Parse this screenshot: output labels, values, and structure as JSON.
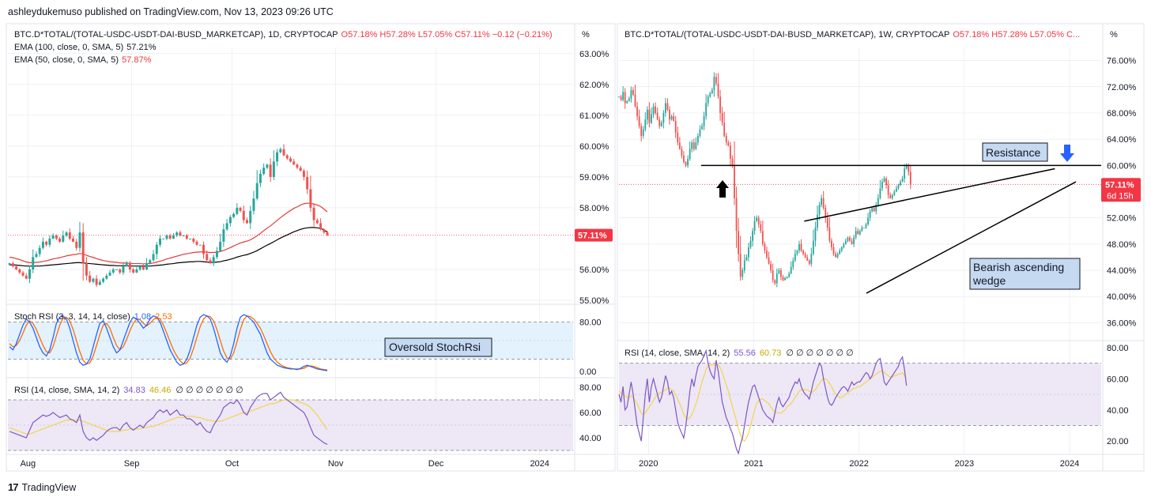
{
  "header": {
    "text": "ashleydukemuso published on TradingView.com, Nov 13, 2023 09:26 UTC"
  },
  "footer": {
    "logo_glyph": "17",
    "brand": "TradingView"
  },
  "colors": {
    "up": "#26a69a",
    "down": "#ef5350",
    "ema100": "#000000",
    "ema50": "#e53935",
    "stoch_k": "#2962ff",
    "stoch_d": "#ff6d00",
    "rsi": "#7e57c2",
    "rsi_ma": "#f5d44a",
    "band_stoch": "#e3f2fd",
    "band_rsi": "#ede7f6",
    "price_tag": "#f23645",
    "grid": "#e0e3eb"
  },
  "left_panel": {
    "legend": {
      "symbol": "BTC.D*TOTAL/(TOTAL-USDC-USDT-DAI-BUSD_MARKETCAP), 1D, CRYPTOCAP",
      "ohlc": "O57.18% H57.28% L57.05% C57.11% −0.12 (−0.21%)",
      "ema100_label": "EMA (100, close, 0, SMA, 5)",
      "ema100_value": "57.21%",
      "ema50_label": "EMA (50, close, 0, SMA, 5)",
      "ema50_value": "57.87%"
    },
    "unit": "%",
    "price_tag": "57.11%",
    "stoch_legend": {
      "label": "Stoch RSI (3, 3, 14, 14, close)",
      "k": "1.08",
      "d": "2.53"
    },
    "rsi_legend": {
      "label": "RSI (14, close, SMA, 14, 2)",
      "rsi": "34.83",
      "ma": "46.46",
      "extra": "∅ ∅ ∅ ∅ ∅ ∅ ∅"
    },
    "annotation": "Oversold StochRsi"
  },
  "right_panel": {
    "legend": {
      "symbol": "BTC.D*TOTAL/(TOTAL-USDC-USDT-DAI-BUSD_MARKETCAP), 1W, CRYPTOCAP",
      "ohlc": "O57.18% H57.28% L57.05% C..."
    },
    "unit": "%",
    "price_tag": "57.11%",
    "price_tag_time": "6d 15h",
    "rsi_legend": {
      "label": "RSI (14, close, SMA, 14, 2)",
      "rsi": "55.56",
      "ma": "60.73",
      "extra": "∅ ∅ ∅ ∅ ∅ ∅ ∅"
    },
    "annotation_resistance": "Resistance",
    "annotation_wedge_1": "Bearish ascending",
    "annotation_wedge_2": "wedge"
  },
  "chart_data": [
    {
      "type": "candlestick",
      "name": "BTC dominance 1D",
      "ylim": [
        55.0,
        63.2
      ],
      "y_ticks": [
        "63.00%",
        "62.00%",
        "61.00%",
        "60.00%",
        "59.00%",
        "58.00%",
        "56.00%",
        "55.00%"
      ],
      "y_tick_values": [
        63,
        62,
        61,
        60,
        59,
        58,
        56,
        55
      ],
      "x_ticks": [
        "Aug",
        "Sep",
        "Oct",
        "Nov",
        "Dec",
        "2024"
      ],
      "x_tick_days": [
        0,
        31,
        61,
        92,
        122,
        153
      ],
      "x_first_day_offset": -6,
      "x_span_days": 169,
      "last_close": 57.11,
      "closes": [
        56.2,
        56.1,
        56.0,
        55.9,
        55.8,
        55.7,
        56.0,
        56.4,
        56.5,
        56.7,
        56.9,
        56.8,
        57.0,
        57.1,
        57.0,
        56.9,
        57.1,
        57.2,
        57.0,
        56.9,
        56.7,
        57.2,
        56.2,
        55.8,
        55.6,
        55.7,
        55.5,
        55.6,
        55.7,
        55.8,
        55.9,
        56.0,
        56.0,
        55.9,
        56.1,
        56.2,
        56.0,
        55.9,
        56.0,
        56.1,
        56.0,
        56.2,
        56.3,
        56.5,
        56.8,
        57.0,
        57.0,
        57.1,
        57.0,
        57.1,
        57.2,
        57.1,
        57.1,
        57.0,
        57.0,
        56.9,
        56.8,
        56.8,
        56.5,
        56.3,
        56.2,
        56.4,
        56.6,
        56.9,
        57.3,
        57.5,
        57.7,
        57.8,
        58.0,
        57.9,
        57.6,
        57.5,
        57.9,
        58.3,
        58.8,
        59.1,
        59.3,
        59.4,
        59.0,
        59.5,
        59.8,
        59.9,
        59.7,
        59.6,
        59.5,
        59.4,
        59.3,
        59.2,
        59.0,
        58.6,
        58.0,
        57.6,
        57.5,
        57.3,
        57.2,
        57.11
      ],
      "ema100": [
        56.15,
        56.15,
        56.14,
        56.13,
        56.12,
        56.11,
        56.11,
        56.11,
        56.11,
        56.11,
        56.12,
        56.13,
        56.14,
        56.15,
        56.16,
        56.17,
        56.18,
        56.19,
        56.2,
        56.21,
        56.22,
        56.22,
        56.21,
        56.2,
        56.19,
        56.18,
        56.17,
        56.16,
        56.15,
        56.14,
        56.13,
        56.13,
        56.12,
        56.12,
        56.12,
        56.12,
        56.11,
        56.11,
        56.11,
        56.11,
        56.11,
        56.11,
        56.11,
        56.12,
        56.13,
        56.14,
        56.15,
        56.17,
        56.18,
        56.19,
        56.21,
        56.22,
        56.23,
        56.24,
        56.25,
        56.25,
        56.26,
        56.26,
        56.25,
        56.24,
        56.23,
        56.23,
        56.24,
        56.25,
        56.28,
        56.3,
        56.33,
        56.36,
        56.4,
        56.43,
        56.46,
        56.48,
        56.52,
        56.56,
        56.61,
        56.67,
        56.73,
        56.79,
        56.84,
        56.9,
        56.96,
        57.02,
        57.07,
        57.12,
        57.17,
        57.22,
        57.26,
        57.3,
        57.33,
        57.35,
        57.36,
        57.36,
        57.35,
        57.33,
        57.28,
        57.21
      ],
      "ema50": [
        56.4,
        56.38,
        56.35,
        56.32,
        56.28,
        56.24,
        56.22,
        56.22,
        56.23,
        56.24,
        56.26,
        56.28,
        56.31,
        56.34,
        56.36,
        56.38,
        56.41,
        56.44,
        56.46,
        56.48,
        56.49,
        56.52,
        56.5,
        56.46,
        56.42,
        56.39,
        56.35,
        56.32,
        56.29,
        56.27,
        56.25,
        56.24,
        56.23,
        56.21,
        56.21,
        56.21,
        56.2,
        56.19,
        56.19,
        56.19,
        56.18,
        56.19,
        56.19,
        56.21,
        56.24,
        56.27,
        56.3,
        56.34,
        56.37,
        56.4,
        56.43,
        56.46,
        56.49,
        56.51,
        56.53,
        56.55,
        56.56,
        56.57,
        56.57,
        56.56,
        56.55,
        56.55,
        56.56,
        56.58,
        56.62,
        56.66,
        56.71,
        56.76,
        56.81,
        56.86,
        56.89,
        56.92,
        56.96,
        57.02,
        57.09,
        57.17,
        57.26,
        57.34,
        57.41,
        57.5,
        57.59,
        57.68,
        57.76,
        57.84,
        57.91,
        57.98,
        58.03,
        58.09,
        58.13,
        58.15,
        58.14,
        58.12,
        58.09,
        58.04,
        57.96,
        57.87
      ],
      "stoch_k": [
        40,
        35,
        45,
        60,
        75,
        85,
        80,
        70,
        55,
        40,
        30,
        25,
        35,
        55,
        78,
        88,
        90,
        85,
        70,
        50,
        30,
        15,
        10,
        12,
        20,
        40,
        60,
        78,
        82,
        70,
        55,
        40,
        30,
        35,
        50,
        65,
        80,
        88,
        85,
        78,
        70,
        75,
        85,
        90,
        88,
        80,
        65,
        50,
        35,
        25,
        15,
        10,
        12,
        20,
        35,
        55,
        75,
        88,
        92,
        90,
        85,
        70,
        50,
        30,
        20,
        15,
        25,
        45,
        70,
        88,
        92,
        90,
        85,
        80,
        70,
        60,
        45,
        30,
        20,
        15,
        10,
        8,
        6,
        5,
        4,
        4,
        3,
        5,
        8,
        10,
        8,
        6,
        4,
        3,
        2,
        1.08
      ],
      "stoch_d": [
        45,
        40,
        42,
        50,
        62,
        75,
        82,
        78,
        68,
        55,
        42,
        32,
        30,
        40,
        58,
        75,
        86,
        88,
        82,
        68,
        50,
        32,
        18,
        12,
        14,
        25,
        42,
        60,
        75,
        78,
        70,
        55,
        42,
        35,
        40,
        52,
        66,
        78,
        85,
        84,
        78,
        74,
        78,
        84,
        88,
        85,
        75,
        62,
        48,
        35,
        25,
        17,
        12,
        14,
        22,
        37,
        55,
        73,
        85,
        90,
        89,
        82,
        68,
        50,
        33,
        22,
        20,
        30,
        48,
        68,
        84,
        90,
        89,
        85,
        78,
        70,
        58,
        45,
        32,
        22,
        15,
        11,
        8,
        6,
        5,
        4,
        4,
        4,
        5,
        8,
        9,
        8,
        6,
        4,
        3,
        2.53
      ],
      "stoch_ylim": [
        0,
        100
      ],
      "stoch_bands": [
        80,
        20
      ],
      "stoch_ticks": [
        "80.00",
        "0.00"
      ],
      "stoch_tick_values": [
        80,
        0
      ],
      "rsi": [
        45,
        44,
        43,
        42,
        41,
        40,
        46,
        52,
        54,
        56,
        58,
        57,
        58,
        60,
        58,
        56,
        57,
        58,
        55,
        54,
        52,
        58,
        45,
        40,
        38,
        40,
        38,
        40,
        42,
        45,
        47,
        48,
        48,
        46,
        50,
        52,
        48,
        46,
        48,
        50,
        48,
        52,
        54,
        56,
        60,
        62,
        60,
        62,
        58,
        60,
        62,
        58,
        58,
        55,
        55,
        53,
        50,
        52,
        48,
        45,
        44,
        50,
        54,
        58,
        64,
        66,
        68,
        67,
        70,
        66,
        60,
        58,
        64,
        68,
        72,
        74,
        75,
        75,
        70,
        72,
        74,
        76,
        72,
        70,
        68,
        66,
        64,
        62,
        60,
        55,
        48,
        42,
        40,
        38,
        36,
        34.83
      ],
      "rsi_ma": [
        48,
        47,
        46,
        45,
        44,
        43,
        43,
        44,
        45,
        46,
        47,
        48,
        49,
        50,
        51,
        52,
        53,
        54,
        54,
        54,
        54,
        54,
        53,
        52,
        51,
        50,
        49,
        48,
        47,
        46,
        45,
        45,
        45,
        45,
        46,
        46,
        47,
        47,
        47,
        47,
        48,
        48,
        49,
        49,
        50,
        51,
        52,
        53,
        54,
        55,
        56,
        56,
        56,
        57,
        57,
        57,
        56,
        56,
        55,
        54,
        54,
        53,
        53,
        53,
        54,
        55,
        56,
        57,
        58,
        59,
        60,
        60,
        61,
        62,
        63,
        64,
        65,
        66,
        67,
        67,
        68,
        69,
        70,
        70,
        70,
        70,
        69,
        68,
        67,
        66,
        64,
        61,
        58,
        54,
        50,
        46.46
      ],
      "rsi_ylim": [
        30,
        85
      ],
      "rsi_bands": [
        70,
        30
      ],
      "rsi_mid": 50,
      "rsi_ticks": [
        "80.00",
        "60.00",
        "40.00"
      ],
      "rsi_tick_values": [
        80,
        60,
        40
      ]
    },
    {
      "type": "candlestick",
      "name": "BTC dominance 1W",
      "ylim": [
        34.0,
        78.0
      ],
      "y_ticks": [
        "76.00%",
        "72.00%",
        "68.00%",
        "64.00%",
        "60.00%",
        "52.00%",
        "48.00%",
        "44.00%",
        "40.00%",
        "36.00%"
      ],
      "y_tick_values": [
        76,
        72,
        68,
        64,
        60,
        52,
        48,
        44,
        40,
        36
      ],
      "x_ticks": [
        "2020",
        "2021",
        "2022",
        "2023",
        "2024"
      ],
      "x_tick_years": [
        2020.0,
        2021.0,
        2022.0,
        2023.0,
        2024.0
      ],
      "x_range_years": [
        2019.72,
        2024.3
      ],
      "x_first_year": 2019.72,
      "last_close": 57.11,
      "closes": [
        70.5,
        70.0,
        71.2,
        69.5,
        69.8,
        70.2,
        71.5,
        70.8,
        69.0,
        67.5,
        66.0,
        64.5,
        65.5,
        67.0,
        68.5,
        66.5,
        67.8,
        69.0,
        68.0,
        67.0,
        66.0,
        66.5,
        68.0,
        69.5,
        68.5,
        67.0,
        67.5,
        66.8,
        65.0,
        63.5,
        62.5,
        61.5,
        60.5,
        60.0,
        61.0,
        62.5,
        63.5,
        62.5,
        63.5,
        64.5,
        65.5,
        66.0,
        67.5,
        69.5,
        70.5,
        71.0,
        71.5,
        73.5,
        72.5,
        70.5,
        68.0,
        66.5,
        64.5,
        63.5,
        63.0,
        61.0,
        60.0,
        55.0,
        50.0,
        46.5,
        43.0,
        44.0,
        45.5,
        46.0,
        47.5,
        48.5,
        50.0,
        51.5,
        52.0,
        51.0,
        50.0,
        48.0,
        47.0,
        46.0,
        45.0,
        44.0,
        42.5,
        42.0,
        43.5,
        44.0,
        43.0,
        42.5,
        42.8,
        43.0,
        43.5,
        44.5,
        45.5,
        46.5,
        47.0,
        48.0,
        47.0,
        46.5,
        46.0,
        45.5,
        45.0,
        46.5,
        48.5,
        50.5,
        52.5,
        54.0,
        55.0,
        53.5,
        52.0,
        50.5,
        48.5,
        47.5,
        46.5,
        46.0,
        46.5,
        47.0,
        47.5,
        48.0,
        48.5,
        49.0,
        48.5,
        48.0,
        49.0,
        50.0,
        49.5,
        50.0,
        50.5,
        50.5,
        51.0,
        52.0,
        53.0,
        53.5,
        53.0,
        54.0,
        55.0,
        56.5,
        57.5,
        58.0,
        57.0,
        55.5,
        55.0,
        55.5,
        56.0,
        56.5,
        57.0,
        57.5,
        58.0,
        59.5,
        60.0,
        59.0,
        57.11
      ],
      "closes_note": "",
      "resistance_level": 60.0,
      "current_level": 57.11,
      "upper_trendline": [
        [
          2021.48,
          51.5
        ],
        [
          2023.86,
          59.5
        ]
      ],
      "lower_trendline": [
        [
          2022.07,
          40.5
        ],
        [
          2024.06,
          57.5
        ]
      ],
      "rsi": [
        50,
        45,
        55,
        40,
        42,
        50,
        58,
        50,
        40,
        30,
        25,
        20,
        35,
        50,
        60,
        45,
        55,
        60,
        55,
        50,
        45,
        48,
        55,
        62,
        58,
        50,
        52,
        48,
        40,
        32,
        28,
        25,
        22,
        30,
        40,
        52,
        60,
        55,
        62,
        68,
        70,
        72,
        75,
        78,
        70,
        65,
        62,
        60,
        72,
        65,
        55,
        45,
        40,
        35,
        32,
        28,
        25,
        20,
        15,
        12,
        18,
        22,
        30,
        38,
        45,
        50,
        55,
        56,
        52,
        48,
        44,
        40,
        38,
        36,
        35,
        34,
        32,
        38,
        44,
        48,
        44,
        42,
        44,
        46,
        48,
        52,
        55,
        58,
        57,
        60,
        55,
        52,
        50,
        49,
        47,
        52,
        58,
        62,
        66,
        70,
        68,
        60,
        54,
        48,
        44,
        43,
        45,
        48,
        50,
        52,
        54,
        55,
        54,
        52,
        55,
        58,
        56,
        57,
        58,
        58,
        60,
        62,
        64,
        63,
        60,
        62,
        66,
        70,
        72,
        73,
        66,
        58,
        56,
        58,
        60,
        62,
        64,
        66,
        68,
        72,
        74,
        66,
        55.56
      ],
      "rsi_ma": [
        52,
        51,
        50,
        49,
        48,
        48,
        49,
        48,
        46,
        44,
        41,
        38,
        37,
        38,
        40,
        42,
        44,
        46,
        48,
        50,
        51,
        51,
        52,
        53,
        54,
        54,
        53,
        52,
        50,
        47,
        44,
        41,
        37,
        35,
        34,
        35,
        37,
        40,
        44,
        48,
        53,
        58,
        62,
        66,
        68,
        69,
        69,
        69,
        69,
        69,
        67,
        64,
        60,
        56,
        52,
        47,
        42,
        38,
        33,
        28,
        24,
        21,
        20,
        22,
        25,
        30,
        35,
        40,
        44,
        46,
        47,
        47,
        46,
        45,
        44,
        42,
        40,
        39,
        38,
        38,
        38,
        39,
        40,
        42,
        43,
        44,
        46,
        48,
        50,
        52,
        53,
        53,
        53,
        53,
        52,
        51,
        52,
        53,
        55,
        57,
        59,
        60,
        60,
        59,
        57,
        55,
        52,
        50,
        49,
        48,
        48,
        49,
        50,
        51,
        52,
        53,
        54,
        54,
        55,
        55,
        56,
        57,
        58,
        59,
        60,
        61,
        62,
        63,
        64,
        65,
        65,
        64,
        63,
        62,
        61,
        61,
        62,
        62,
        63,
        63,
        64,
        62,
        60.73
      ],
      "rsi_ylim": [
        14,
        82
      ],
      "rsi_bands": [
        70,
        30
      ],
      "rsi_mid": 50,
      "rsi_ticks": [
        "80.00",
        "60.00",
        "40.00",
        "20.00"
      ],
      "rsi_tick_values": [
        80,
        60,
        40,
        20
      ]
    }
  ]
}
